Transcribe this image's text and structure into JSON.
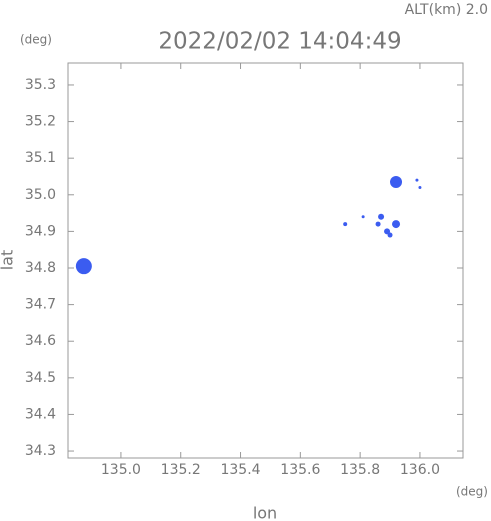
{
  "chart_data": {
    "type": "scatter",
    "subtitle": "ALT(km) 2.0",
    "title": "2022/02/02 14:04:49",
    "y_unit": "(deg)",
    "x_unit": "(deg)",
    "x_label": "lon",
    "y_label": "lat",
    "color": "#3b5cf0",
    "x": [
      134.876,
      135.92,
      135.99,
      136.0,
      135.75,
      135.81,
      135.87,
      135.86,
      135.92,
      135.89,
      135.9
    ],
    "y": [
      34.805,
      35.035,
      35.04,
      35.02,
      34.92,
      34.94,
      34.94,
      34.92,
      34.92,
      34.9,
      34.89
    ],
    "size": [
      8,
      6,
      1.5,
      1.5,
      2,
      1.5,
      3,
      2.5,
      4,
      3,
      2.5
    ],
    "xlim": [
      134.823,
      136.144
    ],
    "ylim": [
      34.281,
      35.36
    ],
    "xticks": [
      {
        "value": 135.0,
        "label": "135.0"
      },
      135.2,
      135.4,
      135.6,
      135.8,
      {
        "value": 136.0,
        "label": "136.0"
      }
    ],
    "yticks": [
      34.3,
      34.4,
      34.5,
      34.6,
      34.7,
      34.8,
      34.9,
      {
        "value": 35.0,
        "label": "35.0"
      },
      35.1,
      35.2,
      35.3
    ]
  }
}
